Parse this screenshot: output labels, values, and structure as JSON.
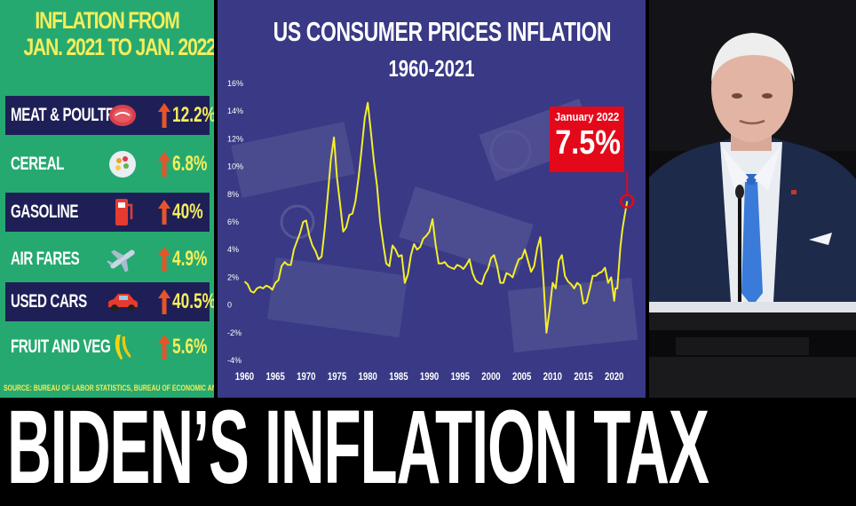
{
  "left_panel": {
    "title_line1": "INFLATION FROM",
    "title_line2": "JAN. 2021 TO JAN. 2022",
    "items": [
      {
        "label": "MEAT & POULTRY",
        "value": "12.2%",
        "icon": "steak-icon"
      },
      {
        "label": "CEREAL",
        "value": "6.8%",
        "icon": "cereal-bowl-icon"
      },
      {
        "label": "GASOLINE",
        "value": "40%",
        "icon": "gas-pump-icon"
      },
      {
        "label": "AIR FARES",
        "value": "4.9%",
        "icon": "airplane-icon"
      },
      {
        "label": "USED CARS",
        "value": "40.5%",
        "icon": "car-icon"
      },
      {
        "label": "FRUIT AND VEG",
        "value": "5.6%",
        "icon": "banana-icon"
      }
    ],
    "source": "SOURCE: BUREAU OF LABOR STATISTICS, BUREAU OF ECONOMIC ANALYSIS, ICE EXCHANGE",
    "colors": {
      "background": "#26a971",
      "row_dark": "#1f1f57",
      "accent": "#f4ee5a",
      "arrow": "#e8542a"
    }
  },
  "chart_data": {
    "type": "line",
    "title": "US CONSUMER PRICES INFLATION",
    "subtitle": "1960-2021",
    "ylim": [
      -4,
      16
    ],
    "yticks": [
      "16%",
      "14%",
      "12%",
      "10%",
      "8%",
      "6%",
      "4%",
      "2%",
      "0",
      "-2%",
      "-4%"
    ],
    "xticks": [
      "1960",
      "1965",
      "1970",
      "1975",
      "1980",
      "1985",
      "1990",
      "1995",
      "2000",
      "2005",
      "2010",
      "2015",
      "2020"
    ],
    "xlim": [
      1959.5,
      2022.2
    ],
    "line_color": "#f5ee2a",
    "series": [
      {
        "x": [
          1960,
          1960.5,
          1961,
          1961.5,
          1962,
          1962.5,
          1963,
          1963.5,
          1964,
          1964.5,
          1965,
          1965.5,
          1966,
          1966.5,
          1967,
          1967.5,
          1968,
          1968.5,
          1969,
          1969.5,
          1970,
          1970.5,
          1971,
          1971.5,
          1972,
          1972.5,
          1973,
          1973.5,
          1974,
          1974.5,
          1975,
          1975.5,
          1976,
          1976.5,
          1977,
          1977.5,
          1978,
          1978.5,
          1979,
          1979.5,
          1980,
          1980.5,
          1981,
          1981.5,
          1982,
          1982.5,
          1983,
          1983.5,
          1984,
          1984.5,
          1985,
          1985.5,
          1986,
          1986.5,
          1987,
          1987.5,
          1988,
          1988.5,
          1989,
          1989.5,
          1990,
          1990.5,
          1991,
          1991.5,
          1992,
          1992.5,
          1993,
          1993.5,
          1994,
          1994.5,
          1995,
          1995.5,
          1996,
          1996.5,
          1997,
          1997.5,
          1998,
          1998.5,
          1999,
          1999.5,
          2000,
          2000.5,
          2001,
          2001.5,
          2002,
          2002.5,
          2003,
          2003.5,
          2004,
          2004.5,
          2005,
          2005.5,
          2006,
          2006.5,
          2007,
          2007.5,
          2008,
          2008.5,
          2009,
          2009.5,
          2010,
          2010.5,
          2011,
          2011.5,
          2012,
          2012.5,
          2013,
          2013.5,
          2014,
          2014.5,
          2015,
          2015.5,
          2016,
          2016.5,
          2017,
          2017.5,
          2018,
          2018.5,
          2019,
          2019.5,
          2020,
          2020.2,
          2020.5,
          2021,
          2021.3,
          2021.6,
          2022.1
        ],
        "y": [
          1.7,
          1.5,
          1.0,
          0.9,
          1.2,
          1.3,
          1.2,
          1.4,
          1.3,
          1.1,
          1.6,
          1.8,
          2.8,
          3.1,
          2.9,
          2.9,
          4.0,
          4.6,
          5.2,
          6.0,
          6.1,
          5.0,
          4.3,
          3.9,
          3.3,
          3.5,
          5.5,
          7.9,
          10.5,
          12.1,
          9.2,
          7.3,
          5.3,
          5.6,
          6.5,
          6.6,
          7.5,
          9.2,
          11.3,
          13.5,
          14.6,
          12.5,
          10.3,
          8.6,
          6.0,
          4.4,
          3.0,
          2.8,
          4.3,
          4.0,
          3.5,
          3.6,
          1.6,
          2.2,
          3.6,
          4.4,
          4.0,
          4.2,
          4.8,
          5.0,
          5.3,
          6.2,
          4.4,
          3.0,
          3.0,
          3.1,
          2.8,
          2.7,
          2.6,
          2.9,
          2.8,
          2.6,
          2.9,
          3.3,
          2.3,
          1.8,
          1.6,
          1.5,
          2.2,
          2.6,
          3.4,
          3.6,
          2.8,
          1.6,
          1.6,
          2.3,
          2.2,
          2.0,
          2.7,
          3.3,
          3.4,
          4.0,
          3.2,
          2.4,
          2.8,
          4.1,
          4.9,
          1.8,
          -2.0,
          -0.4,
          1.6,
          1.2,
          3.2,
          3.6,
          2.1,
          1.7,
          1.5,
          1.2,
          1.6,
          1.4,
          0.1,
          0.2,
          1.1,
          2.1,
          2.1,
          2.3,
          2.4,
          2.7,
          1.6,
          2.0,
          0.3,
          1.2,
          1.2,
          4.2,
          5.4,
          6.2,
          7.5
        ]
      }
    ],
    "annotation": {
      "label": "January 2022",
      "value": "7.5%",
      "x": 2022.1,
      "y": 7.5,
      "color": "#e3091a"
    }
  },
  "headline": "BIDEN’S INFLATION TAX"
}
